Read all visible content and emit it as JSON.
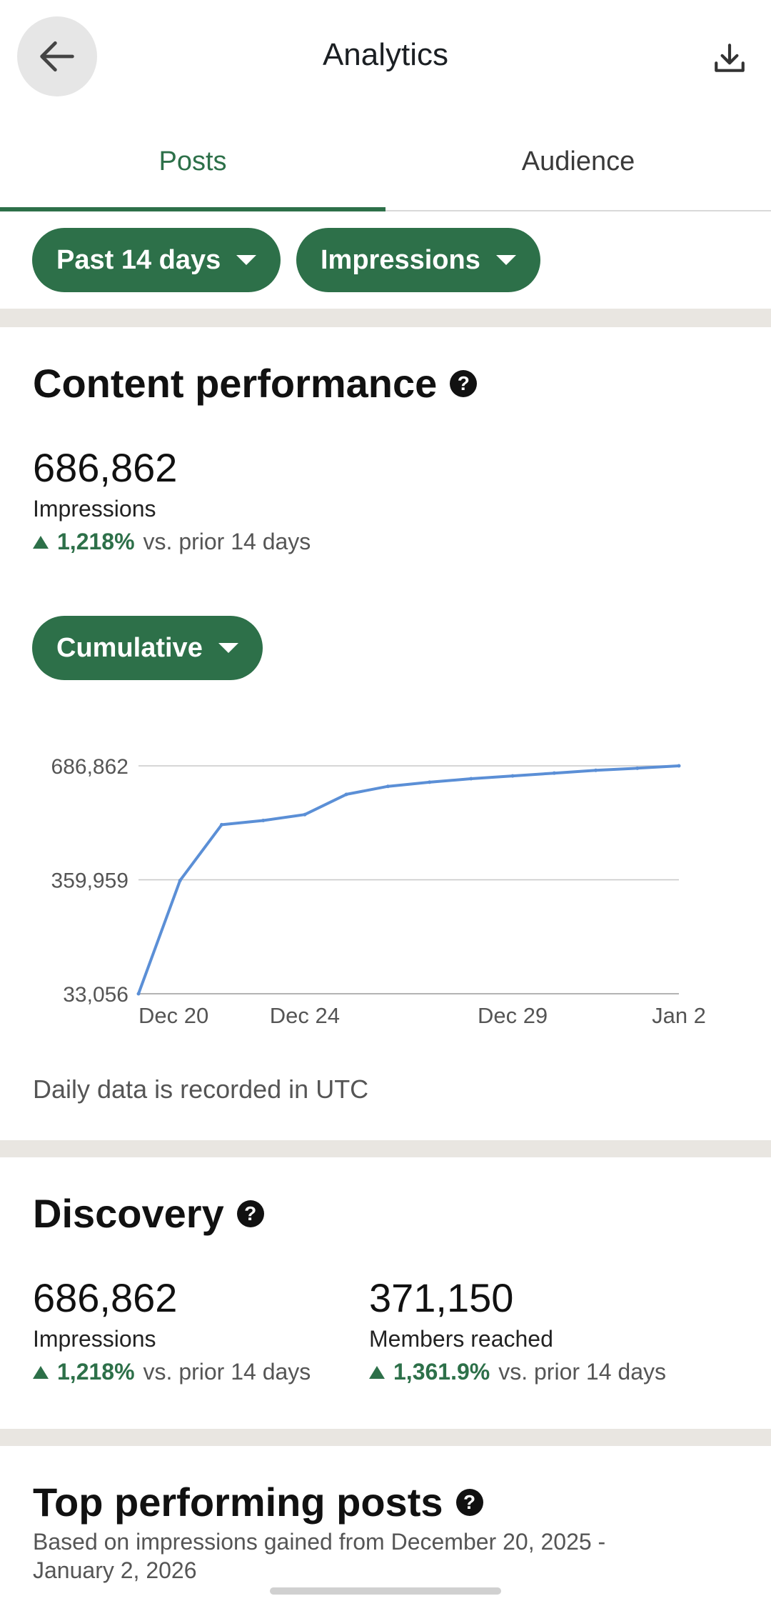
{
  "header": {
    "title": "Analytics",
    "back_icon": "arrow-left-icon",
    "download_icon": "download-icon"
  },
  "tabs": [
    {
      "label": "Posts",
      "active": true
    },
    {
      "label": "Audience",
      "active": false
    }
  ],
  "filters": {
    "range_label": "Past 14 days",
    "metric_label": "Impressions"
  },
  "content_performance": {
    "title": "Content performance",
    "help_icon": "?",
    "value": "686,862",
    "label": "Impressions",
    "change_pct": "1,218%",
    "change_text": "vs. prior 14 days",
    "mode_label": "Cumulative",
    "note": "Daily data is recorded in UTC"
  },
  "chart_data": {
    "type": "line",
    "x": [
      "2025-12-20",
      "2025-12-21",
      "2025-12-22",
      "2025-12-23",
      "2025-12-24",
      "2025-12-25",
      "2025-12-26",
      "2025-12-27",
      "2025-12-28",
      "2025-12-29",
      "2025-12-30",
      "2025-12-31",
      "2026-01-01",
      "2026-01-02"
    ],
    "series": [
      {
        "values": [
          33056,
          358000,
          518000,
          530000,
          547000,
          605000,
          628000,
          640000,
          650000,
          658000,
          666000,
          674000,
          680000,
          686862
        ]
      }
    ],
    "y_ticks": [
      "686,862",
      "359,959",
      "33,056"
    ],
    "x_ticks": [
      {
        "label": "Dec 20",
        "x": "2025-12-20"
      },
      {
        "label": "Dec 24",
        "x": "2025-12-24"
      },
      {
        "label": "Dec 29",
        "x": "2025-12-29"
      },
      {
        "label": "Jan 2",
        "x": "2026-01-02"
      }
    ],
    "ylim": [
      33056,
      686862
    ],
    "grid": true,
    "line_color": "#5b8fd6"
  },
  "discovery": {
    "title": "Discovery",
    "metrics": [
      {
        "value": "686,862",
        "label": "Impressions",
        "change_pct": "1,218%",
        "change_text": "vs. prior 14 days"
      },
      {
        "value": "371,150",
        "label": "Members reached",
        "change_pct": "1,361.9%",
        "change_text": "vs. prior 14 days"
      }
    ]
  },
  "top_posts": {
    "title": "Top performing posts",
    "subtitle_line1": "Based on impressions gained from December 20, 2025 -",
    "subtitle_line2": "January 2, 2026"
  },
  "colors": {
    "accent": "#2d7049",
    "divider": "#e9e6e1"
  }
}
